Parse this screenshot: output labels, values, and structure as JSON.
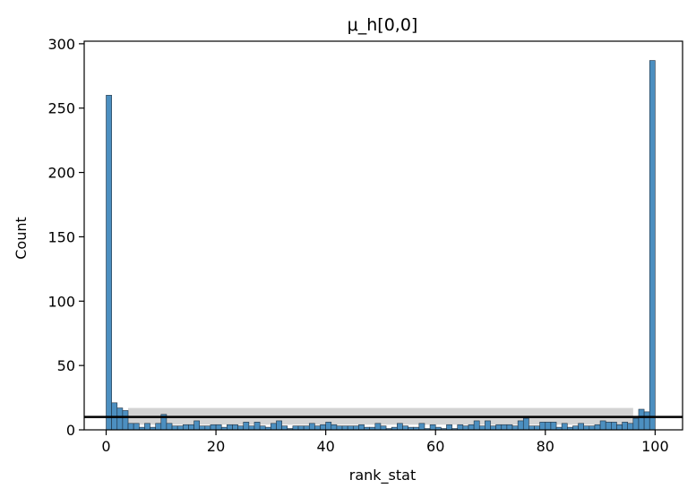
{
  "chart_data": {
    "type": "bar",
    "title": "μ_h[0,0]",
    "xlabel": "rank_stat",
    "ylabel": "Count",
    "xlim": [
      -4,
      105
    ],
    "ylim": [
      0,
      302
    ],
    "x_ticks": [
      0,
      20,
      40,
      60,
      80,
      100
    ],
    "y_ticks": [
      0,
      50,
      100,
      150,
      200,
      250,
      300
    ],
    "grid": false,
    "bar_color": "#4c8fc0",
    "bar_edge_color": "#1f2f3f",
    "bin_width": 1,
    "bin_start": 0,
    "values": [
      260,
      21,
      17,
      15,
      5,
      5,
      2,
      5,
      2,
      5,
      12,
      5,
      3,
      3,
      4,
      4,
      7,
      3,
      3,
      4,
      4,
      2,
      4,
      4,
      3,
      6,
      3,
      6,
      3,
      2,
      5,
      7,
      3,
      1,
      3,
      3,
      3,
      5,
      3,
      4,
      6,
      4,
      3,
      3,
      3,
      3,
      4,
      2,
      2,
      5,
      3,
      1,
      2,
      5,
      3,
      2,
      2,
      5,
      1,
      4,
      2,
      1,
      4,
      1,
      4,
      3,
      4,
      7,
      3,
      7,
      3,
      4,
      4,
      4,
      3,
      7,
      9,
      3,
      3,
      6,
      6,
      6,
      2,
      5,
      2,
      3,
      5,
      3,
      3,
      4,
      7,
      6,
      6,
      4,
      6,
      5,
      9,
      16,
      14,
      287
    ],
    "reference_line": {
      "value": 10,
      "color": "#000000"
    },
    "reference_band": {
      "low": 4,
      "high": 17,
      "color": "#d3d3d3"
    }
  }
}
